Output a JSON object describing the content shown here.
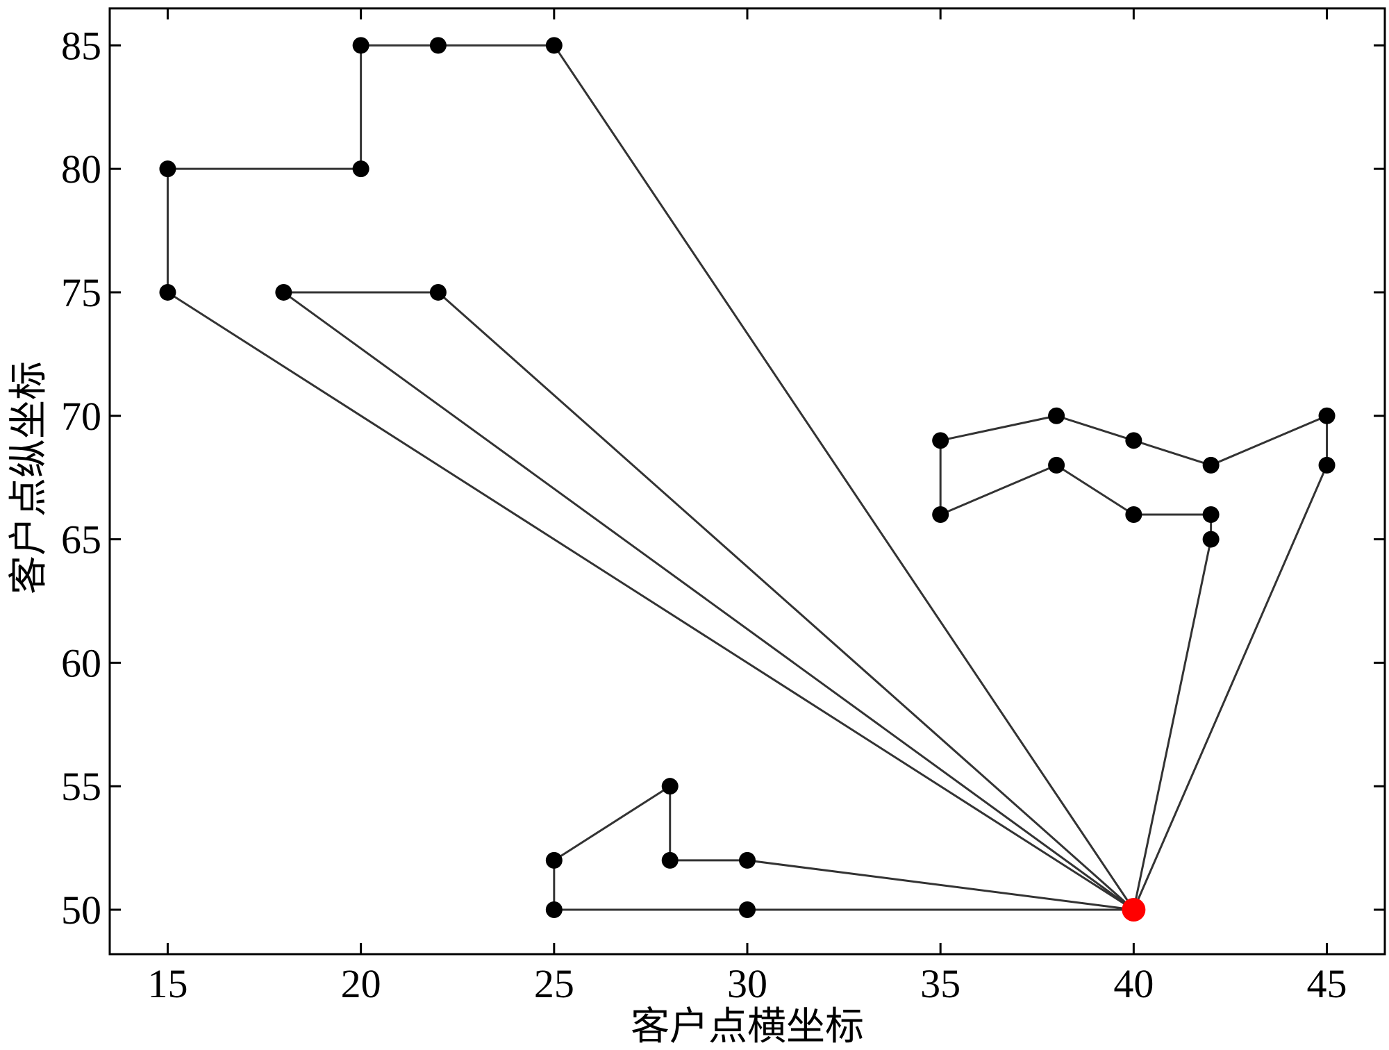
{
  "chart_data": {
    "type": "line",
    "title": "",
    "xlabel": "客户点横坐标",
    "ylabel": "客户点纵坐标",
    "xlim": [
      13.5,
      46.5
    ],
    "ylim": [
      48.2,
      86.5
    ],
    "xticks": [
      15,
      20,
      25,
      30,
      35,
      40,
      45
    ],
    "yticks": [
      50,
      55,
      60,
      65,
      70,
      75,
      80,
      85
    ],
    "grid": false,
    "legend": "none",
    "depot": {
      "x": 40,
      "y": 50,
      "color": "#ff0000"
    },
    "point_color": "#000000",
    "line_color": "#333333",
    "routes": [
      {
        "points": [
          [
            40,
            50
          ],
          [
            30,
            52
          ],
          [
            28,
            52
          ],
          [
            28,
            55
          ],
          [
            25,
            52
          ],
          [
            25,
            50
          ],
          [
            30,
            50
          ],
          [
            40,
            50
          ]
        ]
      },
      {
        "points": [
          [
            40,
            50
          ],
          [
            42,
            65
          ],
          [
            42,
            66
          ],
          [
            40,
            66
          ],
          [
            38,
            68
          ],
          [
            35,
            66
          ],
          [
            35,
            69
          ],
          [
            38,
            70
          ],
          [
            40,
            69
          ],
          [
            42,
            68
          ],
          [
            45,
            70
          ],
          [
            45,
            68
          ],
          [
            40,
            50
          ]
        ]
      },
      {
        "points": [
          [
            40,
            50
          ],
          [
            15,
            75
          ],
          [
            15,
            80
          ],
          [
            20,
            80
          ],
          [
            20,
            85
          ],
          [
            22,
            85
          ],
          [
            25,
            85
          ],
          [
            40,
            50
          ]
        ]
      },
      {
        "points": [
          [
            40,
            50
          ],
          [
            18,
            75
          ],
          [
            22,
            75
          ],
          [
            40,
            50
          ]
        ]
      }
    ]
  }
}
